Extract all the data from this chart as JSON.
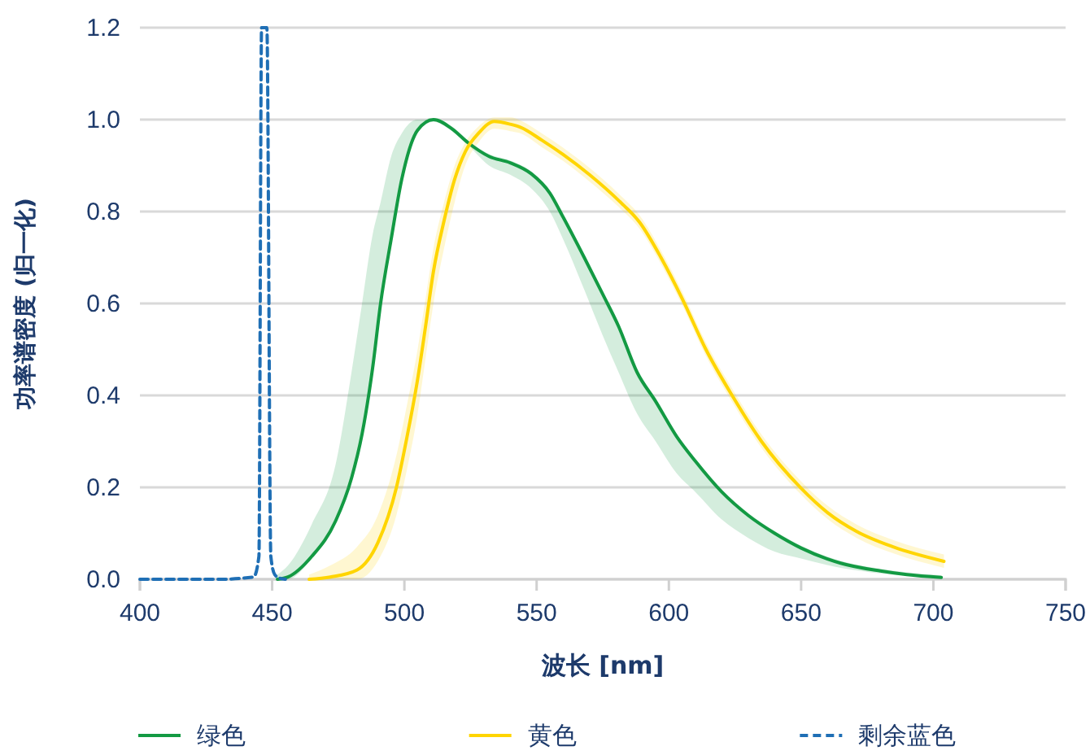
{
  "chart_data": {
    "type": "line",
    "xlabel": "波长 [nm]",
    "ylabel": "功率谱密度 (归一化)",
    "xlim": [
      400,
      750
    ],
    "xticks": [
      400,
      450,
      500,
      550,
      600,
      650,
      700,
      750
    ],
    "ylim": [
      0,
      1.2
    ],
    "yticks": [
      {
        "value": 0,
        "label": "0.0"
      },
      {
        "value": 0.2,
        "label": "0.2"
      },
      {
        "value": 0.4,
        "label": "0.4"
      },
      {
        "value": 0.6,
        "label": "0.6"
      },
      {
        "value": 0.8,
        "label": "0.8"
      },
      {
        "value": 1,
        "label": "1.0"
      },
      {
        "value": 1.2,
        "label": "1.2"
      }
    ],
    "grid": "y",
    "legend": "bottom",
    "series": [
      {
        "name": "绿色",
        "color": "#139a43",
        "line_style": "solid",
        "x": [
          452,
          456,
          465,
          474,
          480,
          484,
          488,
          491,
          495,
          499,
          505,
          511,
          518,
          524,
          532,
          540,
          548,
          555,
          560,
          568,
          575,
          581,
          588,
          595,
          603,
          610,
          620,
          630,
          640,
          650,
          665,
          680,
          690,
          703
        ],
        "values": [
          0,
          0.005,
          0.05,
          0.127,
          0.22,
          0.316,
          0.46,
          0.6,
          0.74,
          0.87,
          0.977,
          1.0,
          0.98,
          0.95,
          0.92,
          0.906,
          0.882,
          0.84,
          0.788,
          0.7,
          0.62,
          0.55,
          0.45,
          0.387,
          0.31,
          0.257,
          0.19,
          0.139,
          0.1,
          0.068,
          0.035,
          0.018,
          0.01,
          0.004
        ],
        "lower": [
          0,
          0,
          0.045,
          0.12,
          0.215,
          0.31,
          0.455,
          0.595,
          0.735,
          0.865,
          0.972,
          0.995,
          0.975,
          0.945,
          0.9,
          0.88,
          0.85,
          0.8,
          0.74,
          0.63,
          0.53,
          0.45,
          0.36,
          0.3,
          0.23,
          0.19,
          0.13,
          0.09,
          0.06,
          0.045,
          0.025,
          0.013,
          0.008,
          0.003
        ],
        "upper": [
          0.01,
          0.03,
          0.12,
          0.25,
          0.45,
          0.6,
          0.75,
          0.82,
          0.92,
          0.97,
          1.0,
          1.0,
          0.985,
          0.955,
          0.925,
          0.911,
          0.887,
          0.845,
          0.793,
          0.705,
          0.625,
          0.555,
          0.455,
          0.392,
          0.315,
          0.262,
          0.195,
          0.144,
          0.105,
          0.073,
          0.04,
          0.023,
          0.015,
          0.009
        ]
      },
      {
        "name": "黄色",
        "color": "#ffd500",
        "line_style": "solid",
        "x": [
          464,
          472,
          482,
          490,
          497,
          501,
          505,
          508,
          511,
          515,
          519,
          523,
          528,
          534,
          540,
          544,
          552,
          560,
          570,
          581,
          589,
          597,
          605,
          614,
          624,
          635,
          650,
          660,
          671,
          685,
          704
        ],
        "values": [
          0,
          0.005,
          0.02,
          0.08,
          0.2,
          0.31,
          0.435,
          0.55,
          0.67,
          0.78,
          0.87,
          0.93,
          0.97,
          0.996,
          0.99,
          0.983,
          0.955,
          0.924,
          0.88,
          0.824,
          0.776,
          0.7,
          0.611,
          0.5,
          0.399,
          0.3,
          0.198,
          0.145,
          0.104,
          0.07,
          0.039
        ],
        "lower": [
          0,
          0,
          0,
          0.04,
          0.14,
          0.24,
          0.36,
          0.48,
          0.6,
          0.72,
          0.82,
          0.9,
          0.95,
          0.98,
          0.975,
          0.97,
          0.94,
          0.91,
          0.865,
          0.81,
          0.762,
          0.686,
          0.597,
          0.486,
          0.385,
          0.286,
          0.184,
          0.131,
          0.09,
          0.056,
          0.025
        ],
        "upper": [
          0.01,
          0.03,
          0.07,
          0.14,
          0.27,
          0.38,
          0.5,
          0.61,
          0.72,
          0.82,
          0.9,
          0.95,
          0.985,
          1.005,
          1.005,
          0.998,
          0.97,
          0.939,
          0.895,
          0.839,
          0.791,
          0.715,
          0.626,
          0.515,
          0.414,
          0.315,
          0.213,
          0.16,
          0.119,
          0.085,
          0.054
        ]
      },
      {
        "name": "剩余蓝色",
        "color": "#1f6fb5",
        "line_style": "dashed",
        "x": [
          400,
          430,
          443,
          445,
          446,
          448,
          449.5,
          451,
          453,
          455
        ],
        "values": [
          0,
          0,
          0.005,
          0.05,
          1.2,
          1.2,
          0.05,
          0.01,
          0.002,
          0
        ]
      }
    ]
  }
}
